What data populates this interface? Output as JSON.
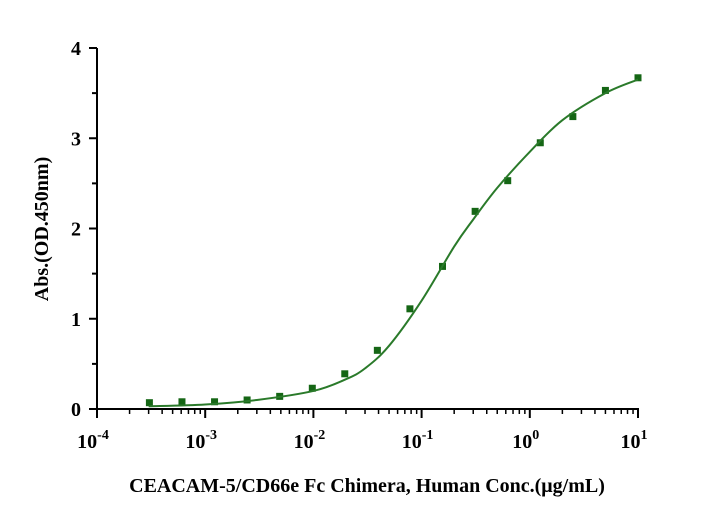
{
  "chart_data": {
    "type": "scatter",
    "x_label": "CEACAM-5/CD66e Fc Chimera, Human Conc.(μg/mL)",
    "y_label": "Abs.(OD.450nm)",
    "xscale": "log",
    "xlim": [
      0.0001,
      10
    ],
    "ylim": [
      0,
      4
    ],
    "xticks": [
      {
        "value": 0.0001,
        "label": "10",
        "exponent": "-4"
      },
      {
        "value": 0.001,
        "label": "10",
        "exponent": "-3"
      },
      {
        "value": 0.01,
        "label": "10",
        "exponent": "-2"
      },
      {
        "value": 0.1,
        "label": "10",
        "exponent": "-1"
      },
      {
        "value": 1,
        "label": "10",
        "exponent": "0"
      },
      {
        "value": 10,
        "label": "10",
        "exponent": "1"
      }
    ],
    "xminorticks": [
      0.0002,
      0.0003,
      0.0004,
      0.0005,
      0.0006,
      0.0007,
      0.0008,
      0.0009,
      0.002,
      0.003,
      0.004,
      0.005,
      0.006,
      0.007,
      0.008,
      0.009,
      0.02,
      0.03,
      0.04,
      0.05,
      0.06,
      0.07,
      0.08,
      0.09,
      0.2,
      0.3,
      0.4,
      0.5,
      0.6,
      0.7,
      0.8,
      0.9,
      2,
      3,
      4,
      5,
      6,
      7,
      8,
      9
    ],
    "yticks": [
      0,
      1,
      2,
      3,
      4
    ],
    "yminorticks": [
      0.5,
      1.5,
      2.5,
      3.5
    ],
    "series": [
      {
        "kind": "points",
        "color": "#156615",
        "x": [
          0.000305,
          0.00061,
          0.00122,
          0.00244,
          0.00488,
          0.00977,
          0.0195,
          0.039,
          0.078,
          0.156,
          0.3125,
          0.625,
          1.25,
          2.5,
          5,
          10
        ],
        "values": [
          0.07,
          0.08,
          0.08,
          0.1,
          0.14,
          0.23,
          0.39,
          0.65,
          1.11,
          1.58,
          2.19,
          2.53,
          2.95,
          3.24,
          3.53,
          3.67
        ]
      },
      {
        "kind": "fit",
        "color": "#2a7a2a",
        "x": [
          0.0003,
          0.001,
          0.003,
          0.01,
          0.02,
          0.03,
          0.05,
          0.1,
          0.2,
          0.3,
          0.5,
          1,
          2,
          5,
          10
        ],
        "values": [
          0.03,
          0.05,
          0.1,
          0.2,
          0.33,
          0.45,
          0.7,
          1.2,
          1.8,
          2.1,
          2.45,
          2.85,
          3.2,
          3.5,
          3.65
        ]
      }
    ]
  }
}
